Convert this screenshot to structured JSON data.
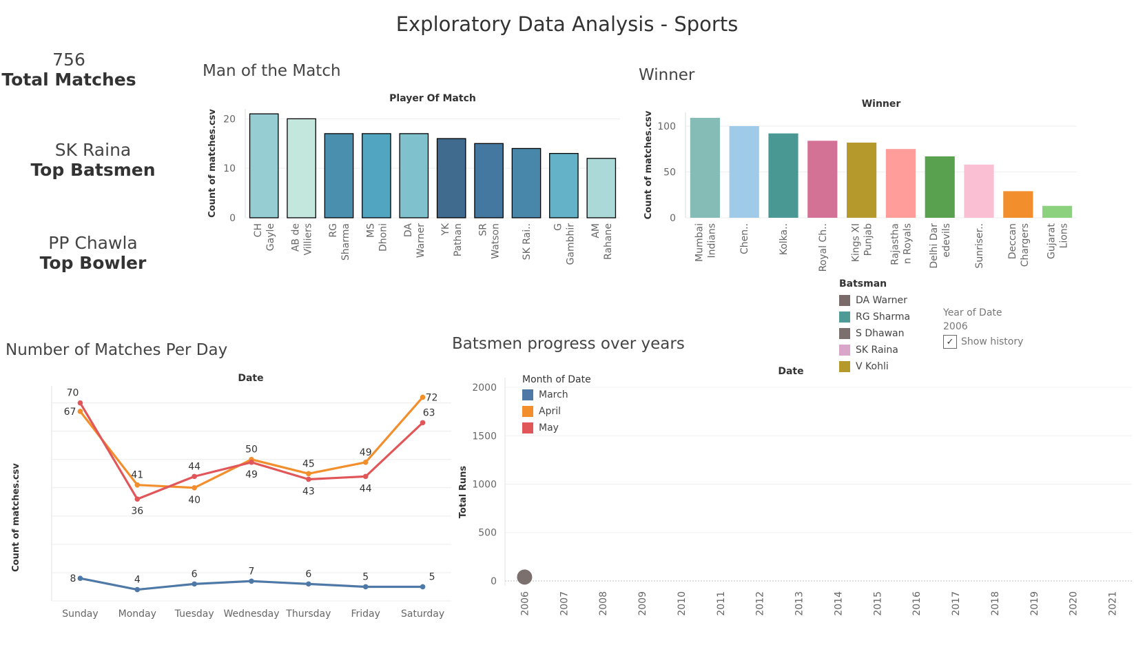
{
  "title": "Exploratory Data Analysis - Sports",
  "kpis": [
    {
      "value": "756",
      "label": "Total Matches"
    },
    {
      "value": "SK Raina",
      "label": "Top Batsmen"
    },
    {
      "value": "PP Chawla",
      "label": "Top Bowler"
    }
  ],
  "sections": {
    "motm": "Man of the Match",
    "winner": "Winner",
    "per_day": "Number of Matches Per Day",
    "progress": "Batsmen progress over years"
  },
  "batsman_legend": {
    "title": "Batsman",
    "items": [
      {
        "name": "DA Warner",
        "color": "#7a6a6a"
      },
      {
        "name": "RG Sharma",
        "color": "#4e9a96"
      },
      {
        "name": "S Dhawan",
        "color": "#7b706e"
      },
      {
        "name": "SK Raina",
        "color": "#d9a6c9"
      },
      {
        "name": "V Kohli",
        "color": "#b5992a"
      }
    ]
  },
  "year_filter": {
    "label": "Year of Date",
    "value": "2006",
    "checkbox_mark": "✓",
    "checkbox_label": "Show history"
  },
  "chart_data": [
    {
      "type": "bar",
      "header": "Player Of Match",
      "ylabel": "Count of matches.csv",
      "ylim": [
        0,
        22
      ],
      "yticks": [
        0,
        10,
        20
      ],
      "categories": [
        [
          "CH",
          "Gayle"
        ],
        [
          "AB de",
          "Villiers"
        ],
        [
          "RG",
          "Sharma"
        ],
        [
          "MS",
          "Dhoni"
        ],
        [
          "DA",
          "Warner"
        ],
        [
          "YK",
          "Pathan"
        ],
        [
          "SR",
          "Watson"
        ],
        [
          "SK Rai.."
        ],
        [
          "G",
          "Gambhir"
        ],
        [
          "AM",
          "Rahane"
        ]
      ],
      "values": [
        21,
        20,
        17,
        17,
        17,
        16,
        15,
        14,
        13,
        12
      ],
      "colors": [
        "#96cdd2",
        "#c4e7dd",
        "#4a90ae",
        "#52a5c0",
        "#7fc1cc",
        "#416a8f",
        "#4478a0",
        "#4886aa",
        "#64b2c8",
        "#abd9d8"
      ],
      "outline": "#000000"
    },
    {
      "type": "bar",
      "header": "Winner",
      "ylabel": "Count of matches.csv",
      "ylim": [
        0,
        115
      ],
      "yticks": [
        0,
        50,
        100
      ],
      "categories": [
        [
          "Mumbai",
          "Indians"
        ],
        [
          "Chen.."
        ],
        [
          "Kolka.."
        ],
        [
          "Royal Ch.."
        ],
        [
          "Kings XI",
          "Punjab"
        ],
        [
          "Rajastha",
          "n Royals"
        ],
        [
          "Delhi Dar",
          "edevils"
        ],
        [
          "Sunriser.."
        ],
        [
          "Deccan",
          "Chargers"
        ],
        [
          "Gujarat",
          "Lions"
        ]
      ],
      "values": [
        109,
        100,
        92,
        84,
        82,
        75,
        67,
        58,
        29,
        13
      ],
      "colors": [
        "#86bcb6",
        "#a0cbe8",
        "#499894",
        "#d37295",
        "#b6992d",
        "#ff9d9a",
        "#59a14f",
        "#fabfd2",
        "#f28e2b",
        "#8cd17d"
      ]
    },
    {
      "type": "line",
      "header": "Date",
      "ylabel": "Count of matches.csv",
      "categories": [
        "Sunday",
        "Monday",
        "Tuesday",
        "Wednesday",
        "Thursday",
        "Friday",
        "Saturday"
      ],
      "ylim": [
        0,
        76
      ],
      "series": [
        {
          "name": "March",
          "color": "#4e79a7",
          "values": [
            8,
            4,
            6,
            7,
            6,
            5,
            5
          ]
        },
        {
          "name": "April",
          "color": "#f28e2b",
          "values": [
            67,
            41,
            40,
            50,
            45,
            49,
            72
          ]
        },
        {
          "name": "May",
          "color": "#e15759",
          "values": [
            70,
            36,
            44,
            49,
            43,
            44,
            63
          ]
        }
      ]
    },
    {
      "type": "scatter",
      "header": "Date",
      "ylabel": "Total Runs",
      "ylim": [
        -50,
        2100
      ],
      "yticks": [
        0,
        500,
        1000,
        1500,
        2000
      ],
      "x": [
        "2006",
        "2007",
        "2008",
        "2009",
        "2010",
        "2011",
        "2012",
        "2013",
        "2014",
        "2015",
        "2016",
        "2017",
        "2018",
        "2019",
        "2020",
        "2021"
      ],
      "points": [
        {
          "x": "2006",
          "y": 40,
          "color": "#7b706e"
        }
      ],
      "legend": {
        "title": "Month of Date",
        "items": [
          {
            "name": "March",
            "color": "#4e79a7"
          },
          {
            "name": "April",
            "color": "#f28e2b"
          },
          {
            "name": "May",
            "color": "#e15759"
          }
        ]
      }
    }
  ]
}
